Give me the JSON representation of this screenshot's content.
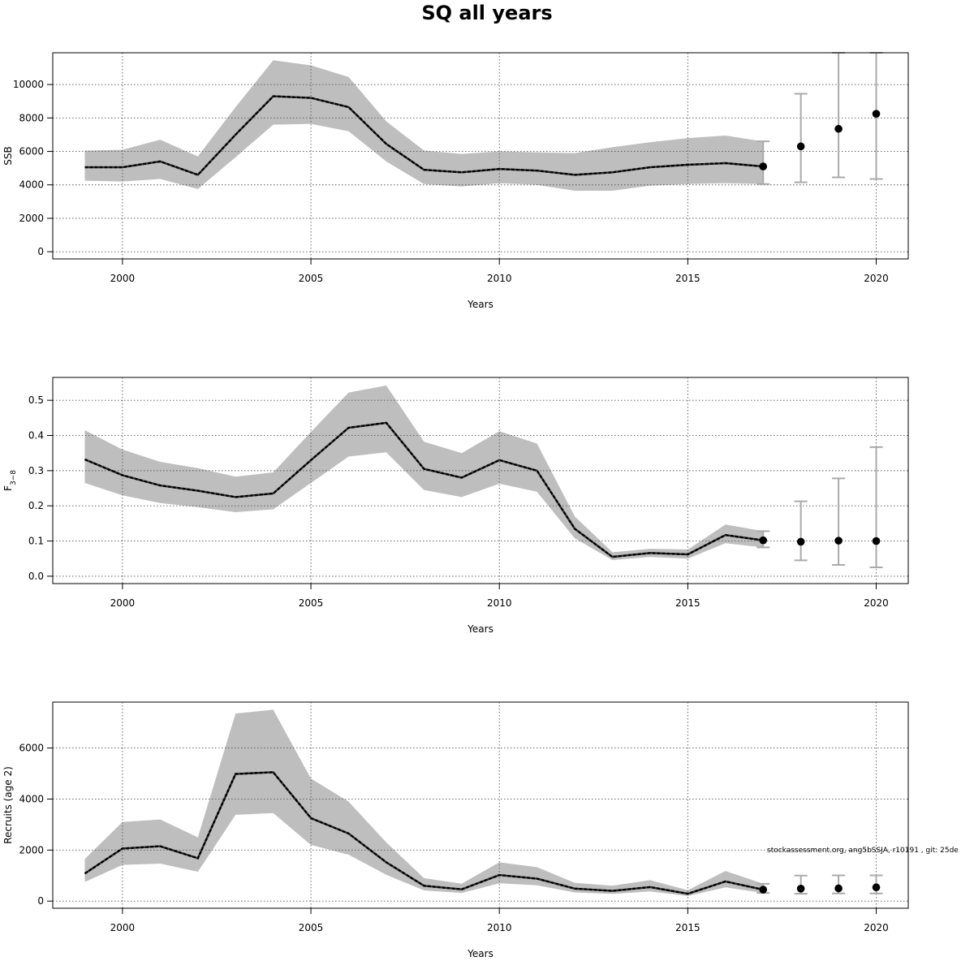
{
  "title": "SQ all years",
  "credit": "stockassessment.org, ang5bSSJA, r10191 , git: 25de",
  "colors": {
    "band": "#bebebe",
    "line": "#000000",
    "forecast_bar": "#aaaaaa",
    "grid": "#555555"
  },
  "chart_data": [
    {
      "type": "line",
      "xlabel": "Years",
      "ylabel": "SSB",
      "xlim": [
        1998.15,
        2020.85
      ],
      "ylim": [
        -430,
        11900
      ],
      "xticks": [
        2000,
        2005,
        2010,
        2015,
        2020
      ],
      "yticks": [
        0,
        2000,
        4000,
        6000,
        8000,
        10000
      ],
      "grid": true,
      "x": [
        1999,
        2000,
        2001,
        2002,
        2003,
        2004,
        2005,
        2006,
        2007,
        2008,
        2009,
        2010,
        2011,
        2012,
        2013,
        2014,
        2015,
        2016,
        2017
      ],
      "estimate": [
        5050,
        5050,
        5400,
        4600,
        7000,
        9300,
        9200,
        8650,
        6450,
        4900,
        4750,
        4950,
        4850,
        4600,
        4750,
        5050,
        5200,
        5300,
        5100
      ],
      "lower": [
        4250,
        4200,
        4350,
        3750,
        5650,
        7600,
        7650,
        7200,
        5400,
        4050,
        3900,
        4100,
        4000,
        3650,
        3650,
        3950,
        4050,
        4100,
        4050
      ],
      "upper": [
        6050,
        6100,
        6700,
        5700,
        8650,
        11450,
        11150,
        10450,
        7800,
        6050,
        5850,
        6000,
        5950,
        5900,
        6250,
        6550,
        6800,
        6950,
        6600
      ],
      "forecast": {
        "x": [
          2017,
          2018,
          2019,
          2020
        ],
        "value": [
          5100,
          6300,
          7350,
          8250
        ],
        "lower": [
          4050,
          4150,
          4450,
          4350
        ],
        "upper": [
          6600,
          9450,
          11900,
          11900
        ]
      }
    },
    {
      "type": "line",
      "xlabel": "Years",
      "ylabel": "F3-8",
      "ylabel_main": "F",
      "ylabel_sub": "3−8",
      "xlim": [
        1998.15,
        2020.85
      ],
      "ylim": [
        -0.021,
        0.565
      ],
      "xticks": [
        2000,
        2005,
        2010,
        2015,
        2020
      ],
      "yticks": [
        "0.0",
        "0.1",
        "0.2",
        "0.3",
        "0.4",
        "0.5"
      ],
      "grid": true,
      "x": [
        1999,
        2000,
        2001,
        2002,
        2003,
        2004,
        2005,
        2006,
        2007,
        2008,
        2009,
        2010,
        2011,
        2012,
        2013,
        2014,
        2015,
        2016,
        2017
      ],
      "estimate": [
        0.332,
        0.287,
        0.258,
        0.243,
        0.225,
        0.235,
        0.33,
        0.422,
        0.436,
        0.305,
        0.28,
        0.33,
        0.3,
        0.135,
        0.055,
        0.066,
        0.062,
        0.117,
        0.102
      ],
      "lower": [
        0.265,
        0.23,
        0.208,
        0.196,
        0.182,
        0.19,
        0.265,
        0.34,
        0.352,
        0.245,
        0.225,
        0.263,
        0.24,
        0.108,
        0.046,
        0.055,
        0.05,
        0.094,
        0.082
      ],
      "upper": [
        0.415,
        0.36,
        0.325,
        0.307,
        0.283,
        0.295,
        0.41,
        0.522,
        0.542,
        0.382,
        0.35,
        0.412,
        0.377,
        0.17,
        0.068,
        0.078,
        0.076,
        0.147,
        0.128
      ],
      "forecast": {
        "x": [
          2017,
          2018,
          2019,
          2020
        ],
        "value": [
          0.102,
          0.098,
          0.101,
          0.1
        ],
        "lower": [
          0.082,
          0.045,
          0.032,
          0.025
        ],
        "upper": [
          0.128,
          0.213,
          0.278,
          0.367
        ]
      }
    },
    {
      "type": "line",
      "xlabel": "Years",
      "ylabel": "Recruits (age 2)",
      "xlim": [
        1998.15,
        2020.85
      ],
      "ylim": [
        -280,
        7800
      ],
      "xticks": [
        2000,
        2005,
        2010,
        2015,
        2020
      ],
      "yticks": [
        0,
        2000,
        4000,
        6000
      ],
      "grid": true,
      "x": [
        1999,
        2000,
        2001,
        2002,
        2003,
        2004,
        2005,
        2006,
        2007,
        2008,
        2009,
        2010,
        2011,
        2012,
        2013,
        2014,
        2015,
        2016,
        2017
      ],
      "estimate": [
        1080,
        2060,
        2150,
        1680,
        4980,
        5050,
        3250,
        2650,
        1520,
        600,
        460,
        1020,
        880,
        490,
        400,
        550,
        290,
        770,
        450
      ],
      "lower": [
        750,
        1420,
        1470,
        1150,
        3380,
        3450,
        2200,
        1820,
        1030,
        420,
        320,
        700,
        620,
        340,
        280,
        380,
        200,
        540,
        320
      ],
      "upper": [
        1650,
        3100,
        3200,
        2500,
        7350,
        7500,
        4800,
        3900,
        2300,
        900,
        680,
        1520,
        1330,
        720,
        600,
        820,
        430,
        1180,
        680
      ],
      "forecast": {
        "x": [
          2017,
          2018,
          2019,
          2020
        ],
        "value": [
          450,
          490,
          500,
          540
        ],
        "lower": [
          320,
          290,
          300,
          300
        ],
        "upper": [
          680,
          1000,
          1010,
          1010
        ]
      }
    }
  ]
}
